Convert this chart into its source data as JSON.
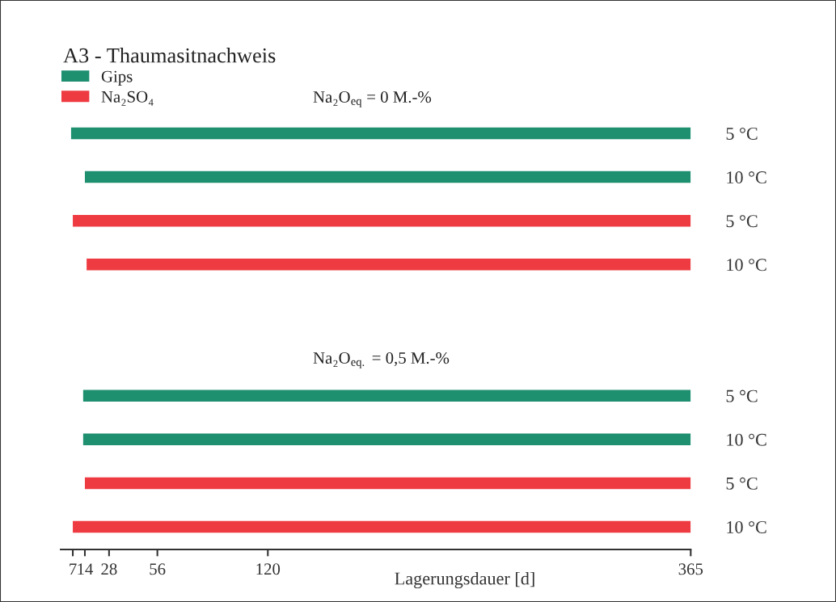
{
  "chart_data": {
    "type": "bar",
    "orientation": "horizontal",
    "title": "A3 - Thaumasitnachweis",
    "xlabel": "Lagerungsdauer [d]",
    "categories": [
      "5 °C",
      "10 °C",
      "5 °C",
      "10 °C",
      null,
      null,
      "5 °C",
      "10 °C",
      "5 °C",
      "10 °C"
    ],
    "series": [
      {
        "name": "Gips",
        "color": "#1e8f6f",
        "base": [
          6,
          14,
          null,
          null,
          null,
          null,
          13,
          13,
          null,
          null
        ],
        "values": [
          359,
          351,
          null,
          null,
          null,
          null,
          352,
          352,
          null,
          null
        ]
      },
      {
        "name": "Na₂SO₄",
        "color": "#ee3b41",
        "base": [
          null,
          null,
          7,
          15,
          null,
          null,
          null,
          null,
          14,
          7
        ],
        "values": [
          null,
          null,
          358,
          350,
          null,
          null,
          null,
          null,
          351,
          358
        ]
      }
    ],
    "xlim": [
      0,
      365
    ],
    "xticks": [
      7,
      14,
      28,
      56,
      120,
      365
    ],
    "annotations": [
      "Na₂O$_{eq}$ = 0 M.-%",
      "Na₂O$_{eq.}$ = 0,5 M.-%"
    ],
    "legend": "top left"
  }
}
